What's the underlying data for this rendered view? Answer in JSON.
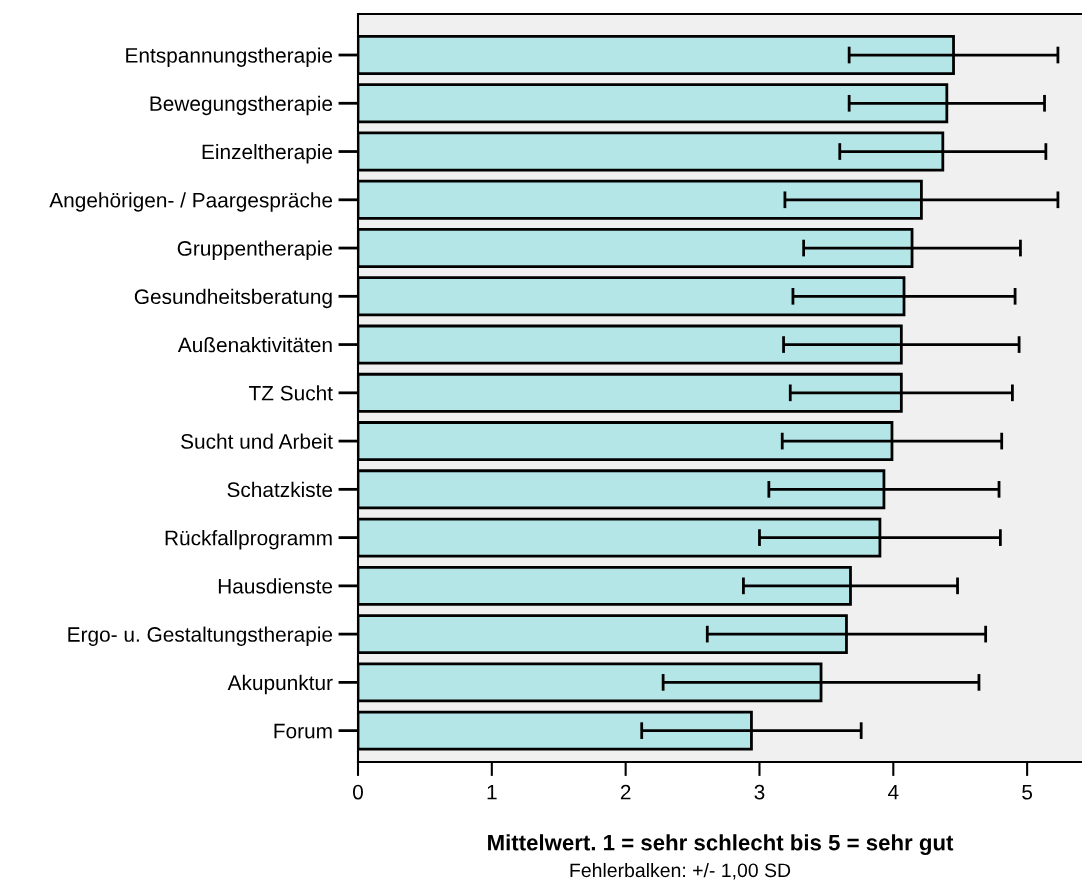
{
  "chart_data": {
    "type": "bar",
    "orientation": "horizontal",
    "xlabel": "Mittelwert. 1 = sehr schlecht bis 5 = sehr gut",
    "annotations": [
      "Fehlerbalken: +/- 1,00 SD"
    ],
    "categories": [
      "Entspannungstherapie",
      "Bewegungstherapie",
      "Einzeltherapie",
      "Angehörigen- / Paargespräche",
      "Gruppentherapie",
      "Gesundheitsberatung",
      "Außenaktivitäten",
      "TZ Sucht",
      "Sucht und Arbeit",
      "Schatzkiste",
      "Rückfallprogramm",
      "Hausdienste",
      "Ergo- u. Gestaltungstherapie",
      "Akupunktur",
      "Forum"
    ],
    "values": [
      4.45,
      4.4,
      4.37,
      4.21,
      4.14,
      4.08,
      4.06,
      4.06,
      3.99,
      3.93,
      3.9,
      3.68,
      3.65,
      3.46,
      2.94
    ],
    "errors": [
      0.78,
      0.73,
      0.77,
      1.02,
      0.81,
      0.83,
      0.88,
      0.83,
      0.82,
      0.86,
      0.9,
      0.8,
      1.04,
      1.18,
      0.82
    ],
    "color": "#b4e6e8",
    "xlim": [
      0,
      5.41
    ],
    "xticks": [
      0,
      1,
      2,
      3,
      4,
      5
    ],
    "grid": false,
    "legend": false
  }
}
